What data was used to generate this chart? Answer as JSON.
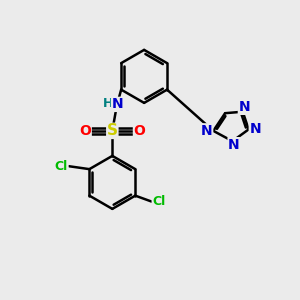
{
  "background_color": "#ebebeb",
  "bond_color": "#000000",
  "bond_width": 1.8,
  "colors": {
    "C": "#000000",
    "N": "#0000cc",
    "O": "#ff0000",
    "S": "#cccc00",
    "Cl": "#00bb00",
    "H": "#008080"
  },
  "font_size": 10,
  "font_size_small": 9
}
